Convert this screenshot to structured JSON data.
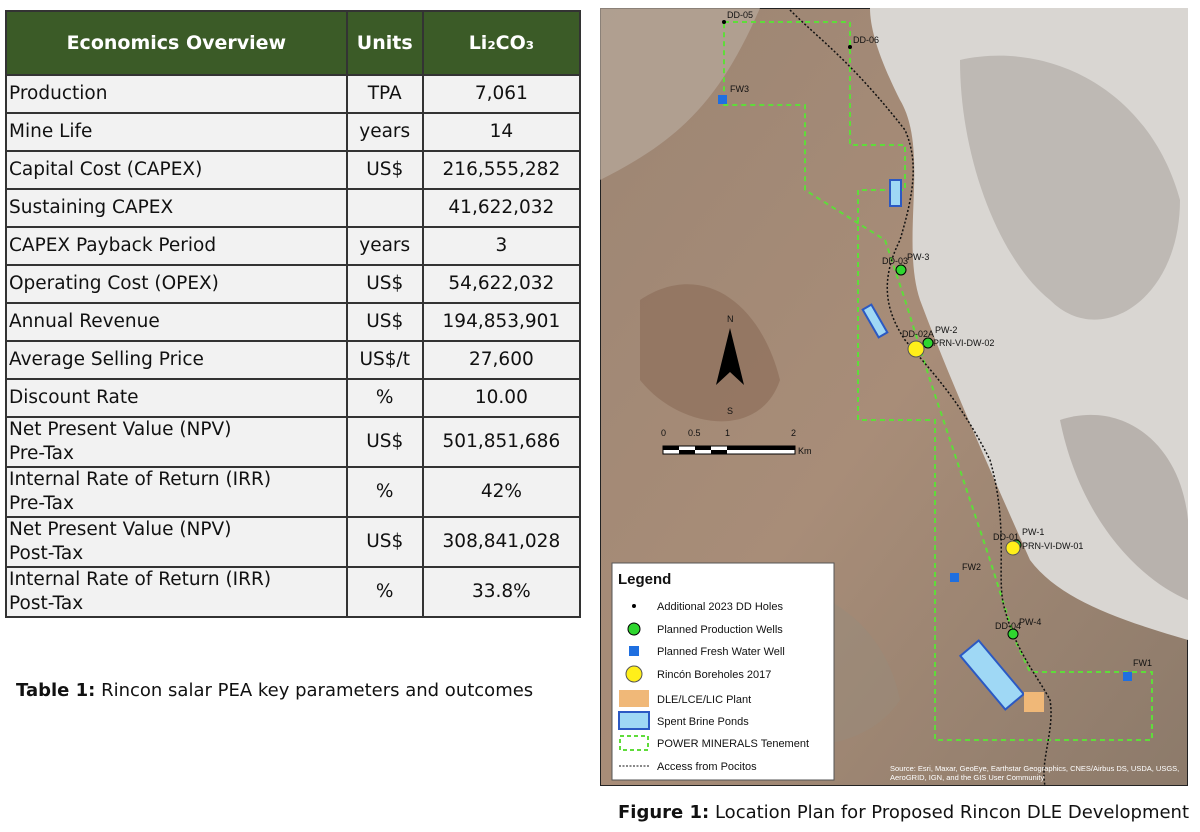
{
  "table": {
    "header": [
      "Economics Overview",
      "Units",
      "Li₂CO₃"
    ],
    "rows": [
      [
        "Production",
        "TPA",
        "7,061"
      ],
      [
        "Mine Life",
        "years",
        "14"
      ],
      [
        "Capital Cost (CAPEX)",
        "US$",
        "216,555,282"
      ],
      [
        "Sustaining CAPEX",
        "",
        "41,622,032"
      ],
      [
        "CAPEX Payback Period",
        "years",
        "3"
      ],
      [
        "Operating Cost (OPEX)",
        "US$",
        "54,622,032"
      ],
      [
        "Annual Revenue",
        "US$",
        "194,853,901"
      ],
      [
        "Average Selling Price",
        "US$/t",
        "27,600"
      ],
      [
        "Discount Rate",
        "%",
        "10.00"
      ],
      [
        "Net Present Value (NPV)\nPre-Tax",
        "US$",
        "501,851,686"
      ],
      [
        "Internal Rate of Return (IRR)\nPre-Tax",
        "%",
        "42%"
      ],
      [
        "Net Present Value (NPV)\nPost-Tax",
        "US$",
        "308,841,028"
      ],
      [
        "Internal Rate of Return (IRR)\nPost-Tax",
        "%",
        "33.8%"
      ]
    ],
    "caption": {
      "label": "Table 1:",
      "text": " Rincon salar PEA key parameters and outcomes"
    }
  },
  "figure": {
    "labels": [
      "DD-05",
      "DD-06",
      "FW3",
      "DD-03",
      "PW-3",
      "DD-02A",
      "PW-2",
      "PRN-VI-DW-02",
      "DD-01",
      "PW-1",
      "PRN-VI-DW-01",
      "FW2",
      "DD-04",
      "PW-4",
      "FW1"
    ],
    "north": "N",
    "south": "S",
    "scale": [
      "0",
      "0.5",
      "1",
      "2",
      "Km"
    ],
    "legend": {
      "title": "Legend",
      "items": [
        "Additional 2023 DD Holes",
        "Planned Production Wells",
        "Planned Fresh Water Well",
        "Rincón Boreholes 2017",
        "DLE/LCE/LIC Plant",
        "Spent Brine Ponds",
        "POWER MINERALS  Tenement",
        "Access from Pocitos"
      ]
    },
    "attribution": "Source: Esri, Maxar, GeoEye, Earthstar Geographics, CNES/Airbus DS, USDA, USGS, AeroGRID, IGN, and the GIS User Community",
    "caption": {
      "label": "Figure 1:",
      "text": " Location Plan for Proposed Rincon DLE Development"
    }
  }
}
